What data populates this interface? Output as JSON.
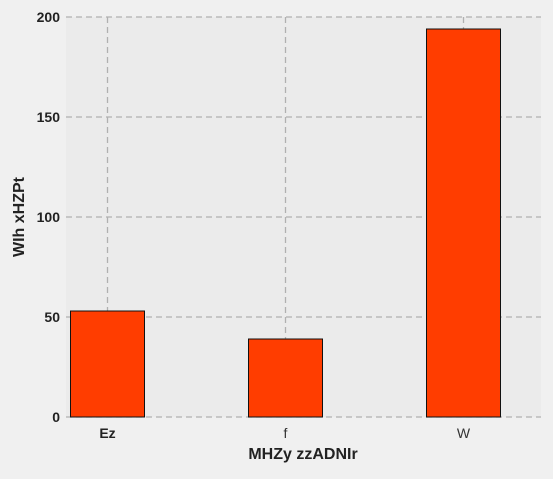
{
  "chart_data": {
    "type": "bar",
    "categories": [
      "Ez",
      "f",
      "W"
    ],
    "values": [
      53,
      39,
      194
    ],
    "xlabel": "MHZy zzADNIr",
    "ylabel": "WIh xHZPt",
    "ylim": [
      0,
      200
    ],
    "yticks": [
      0,
      50,
      100,
      150,
      200
    ],
    "grid": true,
    "bar_color": "#ff3d00",
    "background_color": "#f0f0f0",
    "plot_background_color": "#ebebeb",
    "grid_color": "#b0b0b0"
  }
}
